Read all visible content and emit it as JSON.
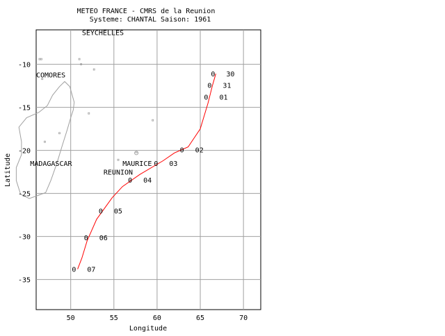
{
  "title": {
    "line1": "METEO FRANCE - CMRS de la Reunion",
    "line2": "Systeme: CHANTAL  Saison: 1961"
  },
  "axes": {
    "xlabel": "Longitude",
    "ylabel": "Latitude",
    "xlim": [
      46,
      72
    ],
    "ylim": [
      -38.5,
      -6
    ],
    "xticks": [
      50,
      55,
      60,
      65,
      70
    ],
    "yticks": [
      -10,
      -15,
      -20,
      -25,
      -30,
      -35
    ],
    "grid": true
  },
  "places": [
    {
      "name": "SEYCHELLES",
      "lon": 51.3,
      "lat": -6.3
    },
    {
      "name": "COMORES",
      "lon": 46.0,
      "lat": -11.2
    },
    {
      "name": "MADAGASCAR",
      "lon": 45.3,
      "lat": -21.5
    },
    {
      "name": "MAURICE",
      "lon": 56.0,
      "lat": -21.5
    },
    {
      "name": "REUNION",
      "lon": 53.8,
      "lat": -22.5
    }
  ],
  "track": {
    "color": "#ff0000",
    "points": [
      [
        66.8,
        -11.1
      ],
      [
        66.4,
        -12.5
      ],
      [
        65.9,
        -14.5
      ],
      [
        65.0,
        -17.5
      ],
      [
        63.6,
        -19.6
      ],
      [
        62.0,
        -20.3
      ],
      [
        60.7,
        -21.2
      ],
      [
        58.0,
        -22.8
      ],
      [
        56.0,
        -24.2
      ],
      [
        54.8,
        -25.5
      ],
      [
        53.0,
        -28.0
      ],
      [
        51.9,
        -30.5
      ],
      [
        51.3,
        -32.5
      ],
      [
        50.8,
        -33.8
      ]
    ]
  },
  "positions": [
    {
      "lon": 66.8,
      "lat": -11.1,
      "hour": "0",
      "day": "30"
    },
    {
      "lon": 66.4,
      "lat": -12.4,
      "hour": "0",
      "day": "31"
    },
    {
      "lon": 66.0,
      "lat": -13.8,
      "hour": "0",
      "day": "01"
    },
    {
      "lon": 63.2,
      "lat": -19.9,
      "hour": "0",
      "day": "02"
    },
    {
      "lon": 60.2,
      "lat": -21.5,
      "hour": "0",
      "day": "03"
    },
    {
      "lon": 57.2,
      "lat": -23.4,
      "hour": "0",
      "day": "04"
    },
    {
      "lon": 53.8,
      "lat": -27.0,
      "hour": "0",
      "day": "05"
    },
    {
      "lon": 52.1,
      "lat": -30.1,
      "hour": "0",
      "day": "06"
    },
    {
      "lon": 50.7,
      "lat": -33.8,
      "hour": "0",
      "day": "07"
    }
  ],
  "coastline_color": "#a0a0a0",
  "track_color": "#ff0000",
  "grid_color": "#a0a0a0"
}
